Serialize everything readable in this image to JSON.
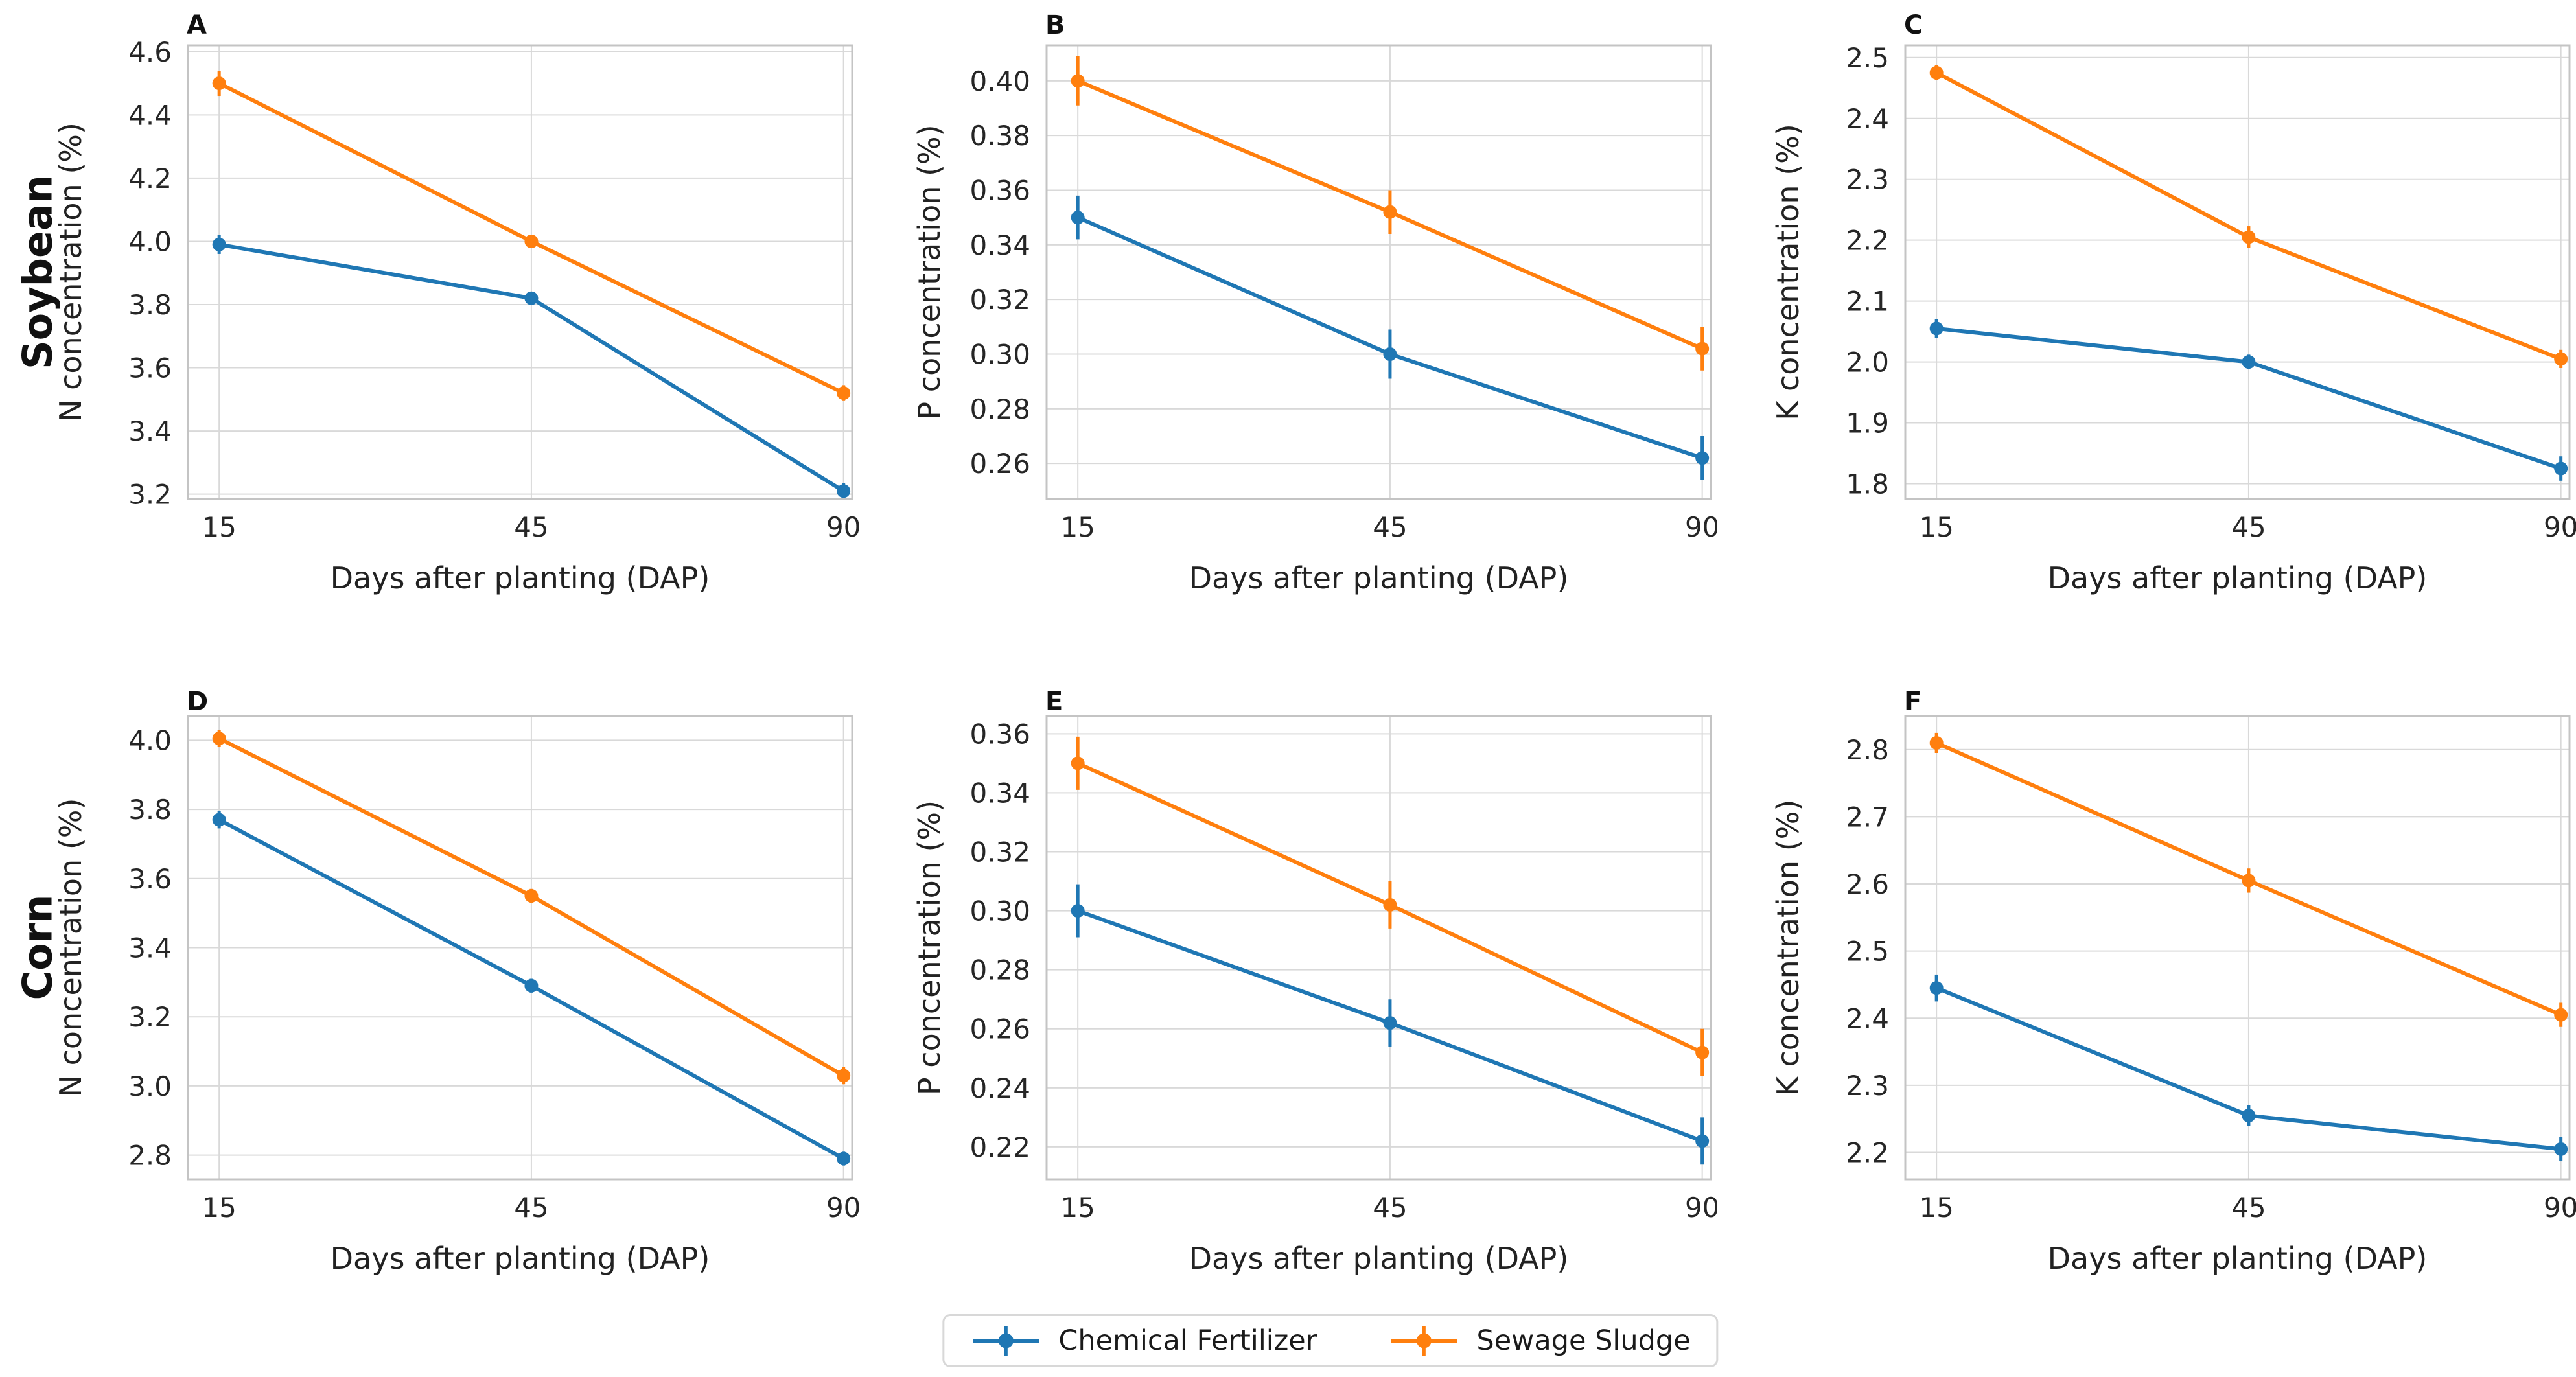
{
  "figure": {
    "background": "#ffffff"
  },
  "rows": [
    {
      "label": "Soybean"
    },
    {
      "label": "Corn"
    }
  ],
  "legend": {
    "items": [
      {
        "label": "Chemical Fertilizer",
        "color": "#1f77b4"
      },
      {
        "label": "Sewage Sludge",
        "color": "#ff7f0e"
      }
    ]
  },
  "chart_data": {
    "type": "line",
    "x_categories": [
      "15",
      "45",
      "90"
    ],
    "xlabel": "Days after planting (DAP)",
    "grid": true,
    "legend_position": "bottom-center",
    "series_colors": [
      "#1f77b4",
      "#ff7f0e"
    ],
    "panels": [
      {
        "letter": "A",
        "row": "Soybean",
        "row_index": 0,
        "col": 0,
        "ylabel": "N concentration (%)",
        "ylim": [
          3.185,
          4.62
        ],
        "yticks": [
          3.2,
          3.4,
          3.6,
          3.8,
          4.0,
          4.2,
          4.4,
          4.6
        ],
        "ytick_decimals": 1,
        "series": [
          {
            "name": "Chemical Fertilizer",
            "color": "#1f77b4",
            "values": [
              3.99,
              3.82,
              3.21
            ],
            "errors": [
              0.03,
              0.02,
              0.025
            ]
          },
          {
            "name": "Sewage Sludge",
            "color": "#ff7f0e",
            "values": [
              4.5,
              4.0,
              3.52
            ],
            "errors": [
              0.04,
              0.02,
              0.025
            ]
          }
        ]
      },
      {
        "letter": "B",
        "row": "Soybean",
        "row_index": 0,
        "col": 1,
        "ylabel": "P concentration (%)",
        "ylim": [
          0.247,
          0.413
        ],
        "yticks": [
          0.26,
          0.28,
          0.3,
          0.32,
          0.34,
          0.36,
          0.38,
          0.4
        ],
        "ytick_decimals": 2,
        "series": [
          {
            "name": "Chemical Fertilizer",
            "color": "#1f77b4",
            "values": [
              0.35,
              0.3,
              0.262
            ],
            "errors": [
              0.008,
              0.009,
              0.008
            ]
          },
          {
            "name": "Sewage Sludge",
            "color": "#ff7f0e",
            "values": [
              0.4,
              0.352,
              0.302
            ],
            "errors": [
              0.009,
              0.008,
              0.008
            ]
          }
        ]
      },
      {
        "letter": "C",
        "row": "Soybean",
        "row_index": 0,
        "col": 2,
        "ylabel": "K concentration (%)",
        "ylim": [
          1.775,
          2.52
        ],
        "yticks": [
          1.8,
          1.9,
          2.0,
          2.1,
          2.2,
          2.3,
          2.4,
          2.5
        ],
        "ytick_decimals": 1,
        "series": [
          {
            "name": "Chemical Fertilizer",
            "color": "#1f77b4",
            "values": [
              2.055,
              2.0,
              1.825
            ],
            "errors": [
              0.015,
              0.012,
              0.02
            ]
          },
          {
            "name": "Sewage Sludge",
            "color": "#ff7f0e",
            "values": [
              2.475,
              2.205,
              2.005
            ],
            "errors": [
              0.012,
              0.018,
              0.015
            ]
          }
        ]
      },
      {
        "letter": "D",
        "row": "Corn",
        "row_index": 1,
        "col": 0,
        "ylabel": "N concentration (%)",
        "ylim": [
          2.73,
          4.07
        ],
        "yticks": [
          2.8,
          3.0,
          3.2,
          3.4,
          3.6,
          3.8,
          4.0
        ],
        "ytick_decimals": 1,
        "series": [
          {
            "name": "Chemical Fertilizer",
            "color": "#1f77b4",
            "values": [
              3.77,
              3.29,
              2.79
            ],
            "errors": [
              0.025,
              0.02,
              0.02
            ]
          },
          {
            "name": "Sewage Sludge",
            "color": "#ff7f0e",
            "values": [
              4.005,
              3.55,
              3.03
            ],
            "errors": [
              0.025,
              0.02,
              0.025
            ]
          }
        ]
      },
      {
        "letter": "E",
        "row": "Corn",
        "row_index": 1,
        "col": 1,
        "ylabel": "P concentration (%)",
        "ylim": [
          0.209,
          0.366
        ],
        "yticks": [
          0.22,
          0.24,
          0.26,
          0.28,
          0.3,
          0.32,
          0.34,
          0.36
        ],
        "ytick_decimals": 2,
        "series": [
          {
            "name": "Chemical Fertilizer",
            "color": "#1f77b4",
            "values": [
              0.3,
              0.262,
              0.222
            ],
            "errors": [
              0.009,
              0.008,
              0.008
            ]
          },
          {
            "name": "Sewage Sludge",
            "color": "#ff7f0e",
            "values": [
              0.35,
              0.302,
              0.252
            ],
            "errors": [
              0.009,
              0.008,
              0.008
            ]
          }
        ]
      },
      {
        "letter": "F",
        "row": "Corn",
        "row_index": 1,
        "col": 2,
        "ylabel": "K concentration (%)",
        "ylim": [
          2.16,
          2.85
        ],
        "yticks": [
          2.2,
          2.3,
          2.4,
          2.5,
          2.6,
          2.7,
          2.8
        ],
        "ytick_decimals": 1,
        "series": [
          {
            "name": "Chemical Fertilizer",
            "color": "#1f77b4",
            "values": [
              2.445,
              2.255,
              2.205
            ],
            "errors": [
              0.02,
              0.015,
              0.018
            ]
          },
          {
            "name": "Sewage Sludge",
            "color": "#ff7f0e",
            "values": [
              2.81,
              2.605,
              2.405
            ],
            "errors": [
              0.015,
              0.018,
              0.018
            ]
          }
        ]
      }
    ]
  }
}
